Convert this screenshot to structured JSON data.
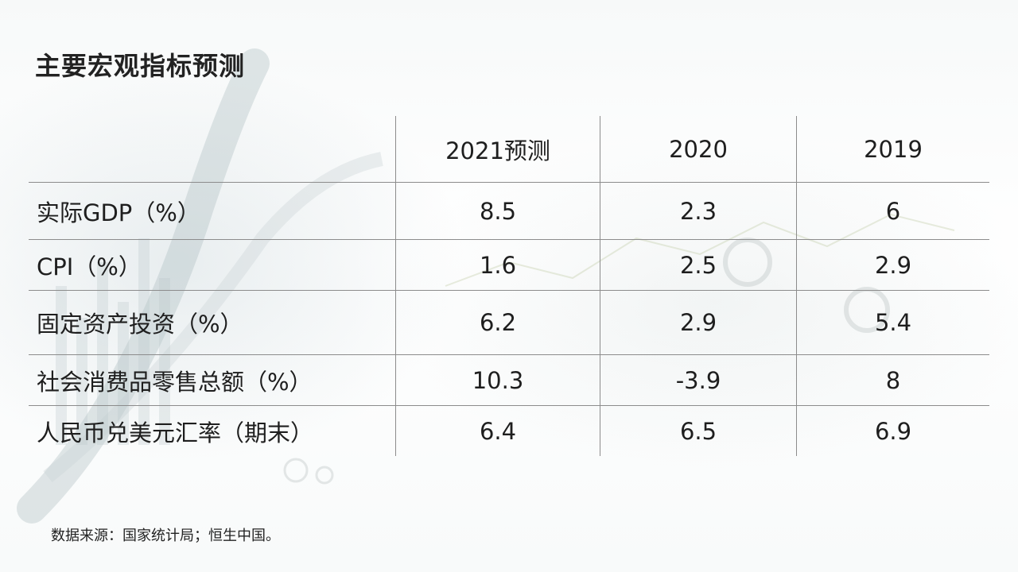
{
  "slide": {
    "title": "主要宏观指标预测",
    "source": "数据来源：国家统计局；恒生中国。"
  },
  "chart_data": {
    "type": "table",
    "columns": [
      "",
      "2021预测",
      "2020",
      "2019"
    ],
    "rows": [
      {
        "label": "实际GDP（%）",
        "values": [
          "8.5",
          "2.3",
          "6"
        ]
      },
      {
        "label": "CPI（%）",
        "values": [
          "1.6",
          "2.5",
          "2.9"
        ]
      },
      {
        "label": "固定资产投资（%）",
        "values": [
          "6.2",
          "2.9",
          "5.4"
        ]
      },
      {
        "label": "社会消费品零售总额（%）",
        "values": [
          "10.3",
          "-3.9",
          "8"
        ]
      },
      {
        "label": "人民币兑美元汇率（期末）",
        "values": [
          "6.4",
          "6.5",
          "6.9"
        ]
      }
    ]
  },
  "colors": {
    "text": "#1e1e1e",
    "rule": "#8c8c8c"
  }
}
